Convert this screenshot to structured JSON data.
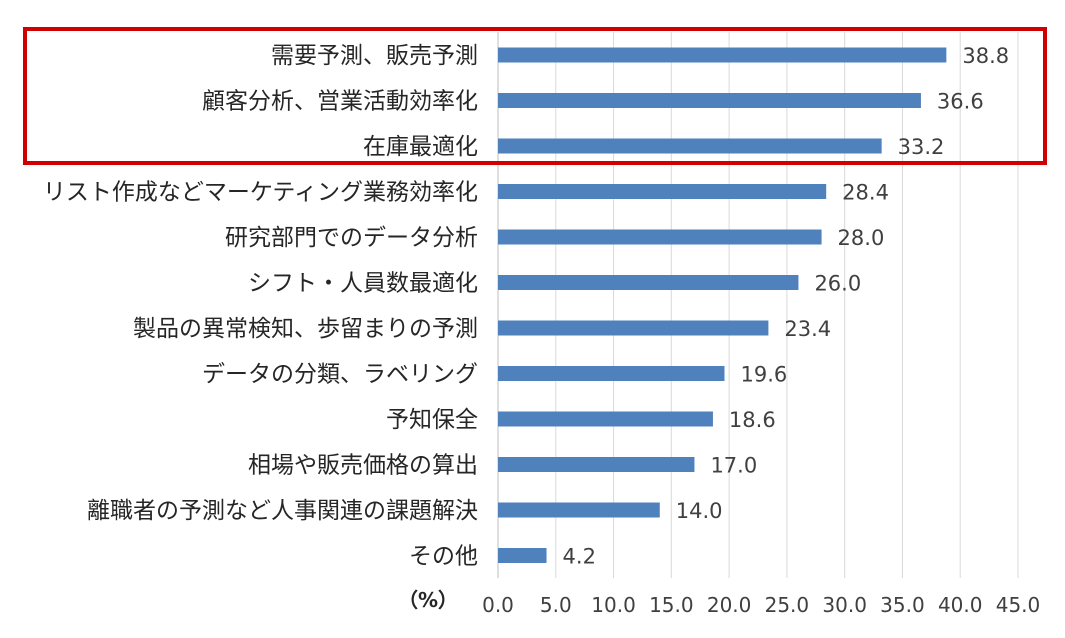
{
  "chart_data": {
    "type": "bar",
    "orientation": "horizontal",
    "categories": [
      "需要予測、販売予測",
      "顧客分析、営業活動効率化",
      "在庫最適化",
      "リスト作成などマーケティング業務効率化",
      "研究部門でのデータ分析",
      "シフト・人員数最適化",
      "製品の異常検知、歩留まりの予測",
      "データの分類、ラベリング",
      "予知保全",
      "相場や販売価格の算出",
      "離職者の予測など人事関連の課題解決",
      "その他"
    ],
    "values": [
      38.8,
      36.6,
      33.2,
      28.4,
      28.0,
      26.0,
      23.4,
      19.6,
      18.6,
      17.0,
      14.0,
      4.2
    ],
    "value_labels": [
      "38.8",
      "36.6",
      "33.2",
      "28.4",
      "28.0",
      "26.0",
      "23.4",
      "19.6",
      "18.6",
      "17.0",
      "14.0",
      "4.2"
    ],
    "xlim": [
      0,
      45
    ],
    "xticks": [
      "0.0",
      "5.0",
      "10.0",
      "15.0",
      "20.0",
      "25.0",
      "30.0",
      "35.0",
      "40.0",
      "45.0"
    ],
    "unit_label": "（%）",
    "grid": "vertical",
    "bar_color": "#4f81bd",
    "grid_color": "#d9d9d9",
    "highlight": {
      "categories_index": [
        0,
        1,
        2
      ],
      "color": "#d00000"
    }
  }
}
